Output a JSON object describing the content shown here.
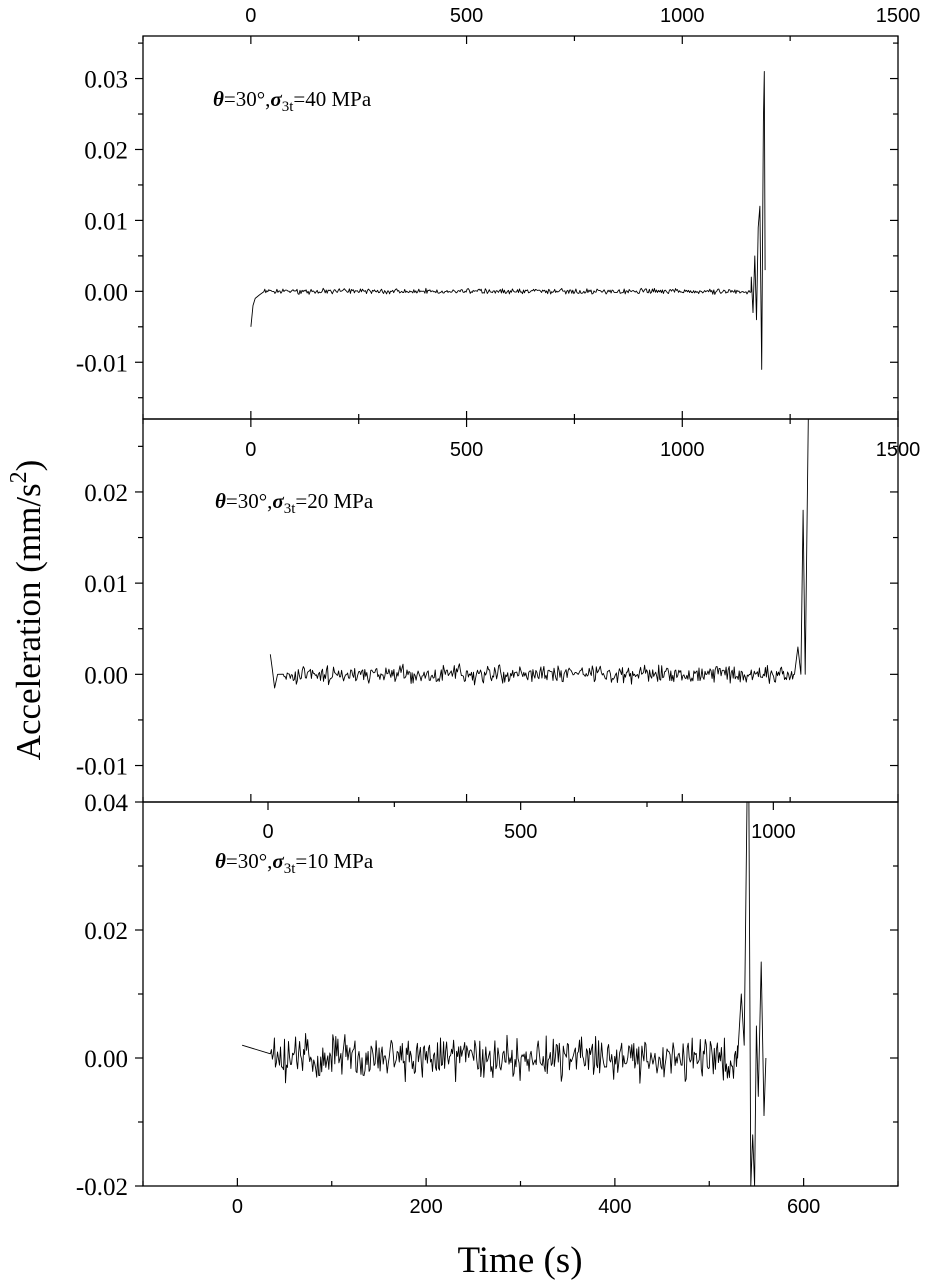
{
  "figure": {
    "ylabel": "Acceleration (mm/s",
    "ylabel_sup": "2",
    "ylabel_end": ")",
    "xlabel": "Time (s)"
  },
  "chart_data": [
    {
      "type": "line",
      "annotation": {
        "theta_sym": "θ",
        "theta_text": "=30°,",
        "sigma_sym": "σ",
        "sigma_sub": "3t",
        "value": "=40 MPa"
      },
      "xlim": [
        -250,
        1500
      ],
      "ylim": [
        -0.018,
        0.036
      ],
      "x_ticks": [
        0,
        500,
        1000,
        1500
      ],
      "x_tick_labels": [
        "0",
        "500",
        "1000",
        "1500"
      ],
      "y_ticks": [
        -0.01,
        0.0,
        0.01,
        0.02,
        0.03
      ],
      "y_tick_labels": [
        "-0.01",
        "0.00",
        "0.01",
        "0.02",
        "0.03"
      ],
      "grid": false,
      "series": [
        {
          "baseline_x": [
            0,
            1160
          ],
          "noise_amplitude": 0.0005,
          "x": [
            0,
            5,
            10,
            20,
            35,
            1150,
            1160,
            1164,
            1168,
            1172,
            1176,
            1180,
            1184,
            1186,
            1188,
            1190,
            1192
          ],
          "y": [
            -0.005,
            -0.002,
            -0.001,
            -0.0005,
            0.0,
            0.0,
            0.002,
            -0.003,
            0.005,
            -0.004,
            0.009,
            0.012,
            -0.011,
            0.006,
            0.024,
            0.031,
            0.003
          ]
        }
      ]
    },
    {
      "type": "line",
      "annotation": {
        "theta_sym": "θ",
        "theta_text": "=30°,",
        "sigma_sym": "σ",
        "sigma_sub": "3t",
        "value": "=20 MPa"
      },
      "xlim": [
        -250,
        1500
      ],
      "ylim": [
        -0.014,
        0.028
      ],
      "x_ticks": [
        0,
        500,
        1000,
        1500
      ],
      "x_tick_labels": [
        "0",
        "500",
        "1000",
        "1500"
      ],
      "y_ticks": [
        -0.01,
        0.0,
        0.01,
        0.02
      ],
      "y_tick_labels": [
        "-0.01",
        "0.00",
        "0.01",
        "0.02"
      ],
      "grid": false,
      "series": [
        {
          "baseline_x": [
            45,
            1260
          ],
          "noise_amplitude": 0.0012,
          "x": [
            45,
            50,
            55,
            62,
            1260,
            1268,
            1275,
            1280,
            1285,
            1292,
            1298
          ],
          "y": [
            0.0022,
            0.0005,
            -0.0015,
            0.0,
            0.0,
            0.003,
            0.0,
            0.018,
            0.0,
            0.03,
            0.03
          ]
        }
      ]
    },
    {
      "type": "line",
      "annotation": {
        "theta_sym": "θ",
        "theta_text": "=30°,",
        "sigma_sym": "σ",
        "sigma_sub": "3t",
        "value": "=10 MPa"
      },
      "xlim": [
        -100,
        700
      ],
      "ylim": [
        -0.02,
        0.04
      ],
      "x_ticks": [
        0,
        200,
        400,
        600
      ],
      "x_tick_labels": [
        "0",
        "200",
        "400",
        "600"
      ],
      "y_ticks": [
        -0.02,
        0.0,
        0.02,
        0.04
      ],
      "y_tick_labels": [
        "-0.02",
        "0.00",
        "0.02",
        "0.04"
      ],
      "grid": false,
      "top_axis": {
        "x_ticks": [
          0,
          500,
          1000
        ],
        "x_tick_labels": [
          "0",
          "500",
          "1000"
        ]
      },
      "series": [
        {
          "baseline_x": [
            5,
            530
          ],
          "noise_amplitude": 0.004,
          "x": [
            5,
            530,
            534,
            537,
            540,
            542,
            544,
            546,
            548,
            550,
            552,
            555,
            558,
            560
          ],
          "y": [
            0.002,
            0.0,
            0.01,
            0.002,
            0.04,
            0.04,
            -0.02,
            -0.012,
            -0.02,
            0.005,
            -0.006,
            0.015,
            -0.009,
            0.0
          ]
        }
      ]
    }
  ]
}
